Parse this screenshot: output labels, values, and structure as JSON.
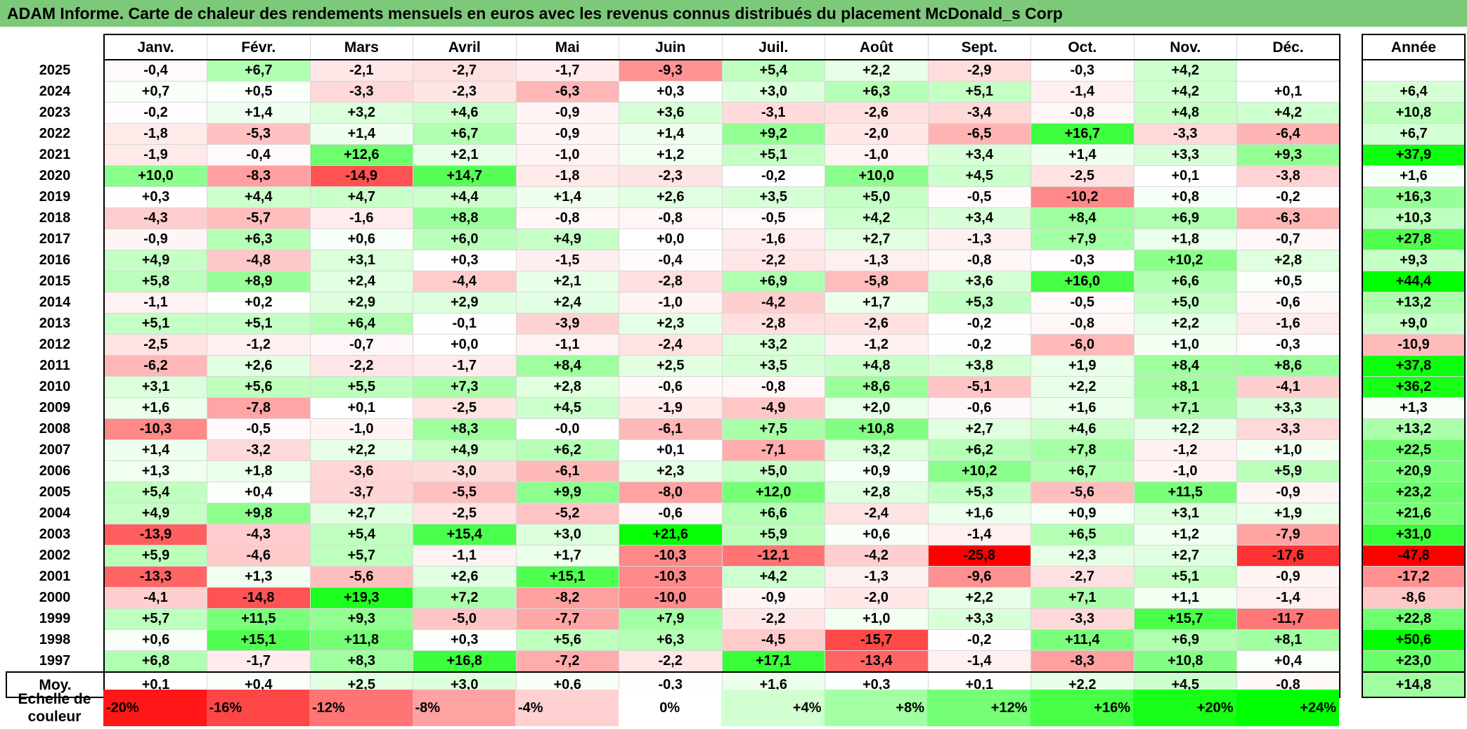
{
  "title": "ADAM Informe. Carte de chaleur des rendements mensuels en euros avec les revenus connus distribués du placement McDonald_s Corp",
  "chart_data": {
    "type": "heatmap",
    "title": "ADAM Informe. Carte de chaleur des rendements mensuels en euros avec les revenus connus distribués du placement McDonald_s Corp",
    "months": [
      "Janv.",
      "Févr.",
      "Mars",
      "Avril",
      "Mai",
      "Juin",
      "Juil.",
      "Août",
      "Sept.",
      "Oct.",
      "Nov.",
      "Déc."
    ],
    "annual_header": "Année",
    "rows": [
      {
        "year": "2025",
        "values": [
          "-0,4",
          "+6,7",
          "-2,1",
          "-2,7",
          "-1,7",
          "-9,3",
          "+5,4",
          "+2,2",
          "-2,9",
          "-0,3",
          "+4,2",
          ""
        ],
        "annual": ""
      },
      {
        "year": "2024",
        "values": [
          "+0,7",
          "+0,5",
          "-3,3",
          "-2,3",
          "-6,3",
          "+0,3",
          "+3,0",
          "+6,3",
          "+5,1",
          "-1,4",
          "+4,2",
          "+0,1"
        ],
        "annual": "+6,4"
      },
      {
        "year": "2023",
        "values": [
          "-0,2",
          "+1,4",
          "+3,2",
          "+4,6",
          "-0,9",
          "+3,6",
          "-3,1",
          "-2,6",
          "-3,4",
          "-0,8",
          "+4,8",
          "+4,2"
        ],
        "annual": "+10,8"
      },
      {
        "year": "2022",
        "values": [
          "-1,8",
          "-5,3",
          "+1,4",
          "+6,7",
          "-0,9",
          "+1,4",
          "+9,2",
          "-2,0",
          "-6,5",
          "+16,7",
          "-3,3",
          "-6,4"
        ],
        "annual": "+6,7"
      },
      {
        "year": "2021",
        "values": [
          "-1,9",
          "-0,4",
          "+12,6",
          "+2,1",
          "-1,0",
          "+1,2",
          "+5,1",
          "-1,0",
          "+3,4",
          "+1,4",
          "+3,3",
          "+9,3"
        ],
        "annual": "+37,9"
      },
      {
        "year": "2020",
        "values": [
          "+10,0",
          "-8,3",
          "-14,9",
          "+14,7",
          "-1,8",
          "-2,3",
          "-0,2",
          "+10,0",
          "+4,5",
          "-2,5",
          "+0,1",
          "-3,8"
        ],
        "annual": "+1,6"
      },
      {
        "year": "2019",
        "values": [
          "+0,3",
          "+4,4",
          "+4,7",
          "+4,4",
          "+1,4",
          "+2,6",
          "+3,5",
          "+5,0",
          "-0,5",
          "-10,2",
          "+0,8",
          "-0,2"
        ],
        "annual": "+16,3"
      },
      {
        "year": "2018",
        "values": [
          "-4,3",
          "-5,7",
          "-1,6",
          "+8,8",
          "-0,8",
          "-0,8",
          "-0,5",
          "+4,2",
          "+3,4",
          "+8,4",
          "+6,9",
          "-6,3"
        ],
        "annual": "+10,3"
      },
      {
        "year": "2017",
        "values": [
          "-0,9",
          "+6,3",
          "+0,6",
          "+6,0",
          "+4,9",
          "+0,0",
          "-1,6",
          "+2,7",
          "-1,3",
          "+7,9",
          "+1,8",
          "-0,7"
        ],
        "annual": "+27,8"
      },
      {
        "year": "2016",
        "values": [
          "+4,9",
          "-4,8",
          "+3,1",
          "+0,3",
          "-1,5",
          "-0,4",
          "-2,2",
          "-1,3",
          "-0,8",
          "-0,3",
          "+10,2",
          "+2,8"
        ],
        "annual": "+9,3"
      },
      {
        "year": "2015",
        "values": [
          "+5,8",
          "+8,9",
          "+2,4",
          "-4,4",
          "+2,1",
          "-2,8",
          "+6,9",
          "-5,8",
          "+3,6",
          "+16,0",
          "+6,6",
          "+0,5"
        ],
        "annual": "+44,4"
      },
      {
        "year": "2014",
        "values": [
          "-1,1",
          "+0,2",
          "+2,9",
          "+2,9",
          "+2,4",
          "-1,0",
          "-4,2",
          "+1,7",
          "+5,3",
          "-0,5",
          "+5,0",
          "-0,6"
        ],
        "annual": "+13,2"
      },
      {
        "year": "2013",
        "values": [
          "+5,1",
          "+5,1",
          "+6,4",
          "-0,1",
          "-3,9",
          "+2,3",
          "-2,8",
          "-2,6",
          "-0,2",
          "-0,8",
          "+2,2",
          "-1,6"
        ],
        "annual": "+9,0"
      },
      {
        "year": "2012",
        "values": [
          "-2,5",
          "-1,2",
          "-0,7",
          "+0,0",
          "-1,1",
          "-2,4",
          "+3,2",
          "-1,2",
          "-0,2",
          "-6,0",
          "+1,0",
          "-0,3"
        ],
        "annual": "-10,9"
      },
      {
        "year": "2011",
        "values": [
          "-6,2",
          "+2,6",
          "-2,2",
          "-1,7",
          "+8,4",
          "+2,5",
          "+3,5",
          "+4,8",
          "+3,8",
          "+1,9",
          "+8,4",
          "+8,6"
        ],
        "annual": "+37,8"
      },
      {
        "year": "2010",
        "values": [
          "+3,1",
          "+5,6",
          "+5,5",
          "+7,3",
          "+2,8",
          "-0,6",
          "-0,8",
          "+8,6",
          "-5,1",
          "+2,2",
          "+8,1",
          "-4,1"
        ],
        "annual": "+36,2"
      },
      {
        "year": "2009",
        "values": [
          "+1,6",
          "-7,8",
          "+0,1",
          "-2,5",
          "+4,5",
          "-1,9",
          "-4,9",
          "+2,0",
          "-0,6",
          "+1,6",
          "+7,1",
          "+3,3"
        ],
        "annual": "+1,3"
      },
      {
        "year": "2008",
        "values": [
          "-10,3",
          "-0,5",
          "-1,0",
          "+8,3",
          "-0,0",
          "-6,1",
          "+7,5",
          "+10,8",
          "+2,7",
          "+4,6",
          "+2,2",
          "-3,3"
        ],
        "annual": "+13,2"
      },
      {
        "year": "2007",
        "values": [
          "+1,4",
          "-3,2",
          "+2,2",
          "+4,9",
          "+6,2",
          "+0,1",
          "-7,1",
          "+3,2",
          "+6,2",
          "+7,8",
          "-1,2",
          "+1,0"
        ],
        "annual": "+22,5"
      },
      {
        "year": "2006",
        "values": [
          "+1,3",
          "+1,8",
          "-3,6",
          "-3,0",
          "-6,1",
          "+2,3",
          "+5,0",
          "+0,9",
          "+10,2",
          "+6,7",
          "-1,0",
          "+5,9"
        ],
        "annual": "+20,9"
      },
      {
        "year": "2005",
        "values": [
          "+5,4",
          "+0,4",
          "-3,7",
          "-5,5",
          "+9,9",
          "-8,0",
          "+12,0",
          "+2,8",
          "+5,3",
          "-5,6",
          "+11,5",
          "-0,9"
        ],
        "annual": "+23,2"
      },
      {
        "year": "2004",
        "values": [
          "+4,9",
          "+9,8",
          "+2,7",
          "-2,5",
          "-5,2",
          "-0,6",
          "+6,6",
          "-2,4",
          "+1,6",
          "+0,9",
          "+3,1",
          "+1,9"
        ],
        "annual": "+21,6"
      },
      {
        "year": "2003",
        "values": [
          "-13,9",
          "-4,3",
          "+5,4",
          "+15,4",
          "+3,0",
          "+21,6",
          "+5,9",
          "+0,6",
          "-1,4",
          "+6,5",
          "+1,2",
          "-7,9"
        ],
        "annual": "+31,0"
      },
      {
        "year": "2002",
        "values": [
          "+5,9",
          "-4,6",
          "+5,7",
          "-1,1",
          "+1,7",
          "-10,3",
          "-12,1",
          "-4,2",
          "-25,8",
          "+2,3",
          "+2,7",
          "-17,6"
        ],
        "annual": "-47,8"
      },
      {
        "year": "2001",
        "values": [
          "-13,3",
          "+1,3",
          "-5,6",
          "+2,6",
          "+15,1",
          "-10,3",
          "+4,2",
          "-1,3",
          "-9,6",
          "-2,7",
          "+5,1",
          "-0,9"
        ],
        "annual": "-17,2"
      },
      {
        "year": "2000",
        "values": [
          "-4,1",
          "-14,8",
          "+19,3",
          "+7,2",
          "-8,2",
          "-10,0",
          "-0,9",
          "-2,0",
          "+2,2",
          "+7,1",
          "+1,1",
          "-1,4"
        ],
        "annual": "-8,6"
      },
      {
        "year": "1999",
        "values": [
          "+5,7",
          "+11,5",
          "+9,3",
          "-5,0",
          "-7,7",
          "+7,9",
          "-2,2",
          "+1,0",
          "+3,3",
          "-3,3",
          "+15,7",
          "-11,7"
        ],
        "annual": "+22,8"
      },
      {
        "year": "1998",
        "values": [
          "+0,6",
          "+15,1",
          "+11,8",
          "+0,3",
          "+5,6",
          "+6,3",
          "-4,5",
          "-15,7",
          "-0,2",
          "+11,4",
          "+6,9",
          "+8,1"
        ],
        "annual": "+50,6"
      },
      {
        "year": "1997",
        "values": [
          "+6,8",
          "-1,7",
          "+8,3",
          "+16,8",
          "-7,2",
          "-2,2",
          "+17,1",
          "-13,4",
          "-1,4",
          "-8,3",
          "+10,8",
          "+0,4"
        ],
        "annual": "+23,0"
      }
    ],
    "average": {
      "label": "Moy.",
      "values": [
        "+0,1",
        "+0,4",
        "+2,5",
        "+3,0",
        "+0,6",
        "-0,3",
        "+1,6",
        "+0,3",
        "+0,1",
        "+2,2",
        "+4,5",
        "-0,8"
      ],
      "annual": "+14,8"
    },
    "scale": {
      "label": "Echelle de couleur",
      "stops": [
        "-20%",
        "-16%",
        "-12%",
        "-8%",
        "-4%",
        "0%",
        "+4%",
        "+8%",
        "+12%",
        "+16%",
        "+20%",
        "+24%"
      ],
      "stop_values": [
        -20,
        -16,
        -12,
        -8,
        -4,
        0,
        4,
        8,
        12,
        16,
        20,
        24
      ]
    },
    "colors": {
      "negative": "#ff0000",
      "positive": "#00ff00",
      "neutral": "#ffffff",
      "title_bar": "#7dc97a"
    }
  }
}
